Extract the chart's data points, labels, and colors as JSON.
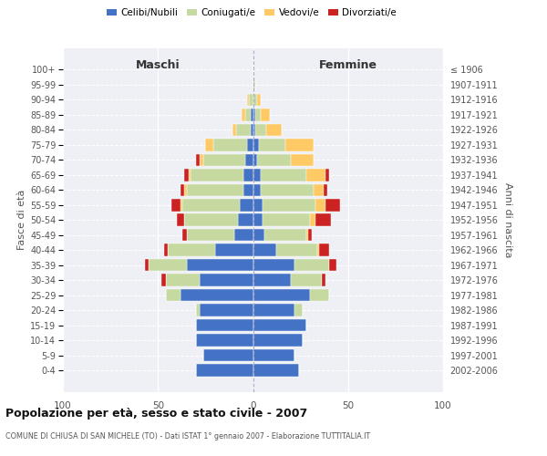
{
  "age_groups": [
    "0-4",
    "5-9",
    "10-14",
    "15-19",
    "20-24",
    "25-29",
    "30-34",
    "35-39",
    "40-44",
    "45-49",
    "50-54",
    "55-59",
    "60-64",
    "65-69",
    "70-74",
    "75-79",
    "80-84",
    "85-89",
    "90-94",
    "95-99",
    "100+"
  ],
  "birth_years": [
    "2002-2006",
    "1997-2001",
    "1992-1996",
    "1987-1991",
    "1982-1986",
    "1977-1981",
    "1972-1976",
    "1967-1971",
    "1962-1966",
    "1957-1961",
    "1952-1956",
    "1947-1951",
    "1942-1946",
    "1937-1941",
    "1932-1936",
    "1927-1931",
    "1922-1926",
    "1917-1921",
    "1912-1916",
    "1907-1911",
    "≤ 1906"
  ],
  "males": {
    "celibi": [
      30,
      26,
      30,
      30,
      28,
      38,
      28,
      35,
      20,
      10,
      8,
      7,
      5,
      5,
      4,
      3,
      1,
      1,
      0,
      0,
      0
    ],
    "coniugati": [
      0,
      0,
      0,
      0,
      2,
      8,
      18,
      20,
      25,
      25,
      28,
      30,
      30,
      28,
      22,
      18,
      8,
      3,
      2,
      0,
      0
    ],
    "vedovi": [
      0,
      0,
      0,
      0,
      0,
      0,
      0,
      0,
      0,
      0,
      0,
      1,
      1,
      1,
      2,
      4,
      2,
      2,
      1,
      0,
      0
    ],
    "divorziati": [
      0,
      0,
      0,
      0,
      0,
      0,
      2,
      2,
      2,
      2,
      4,
      5,
      2,
      2,
      2,
      0,
      0,
      0,
      0,
      0,
      0
    ]
  },
  "females": {
    "nubili": [
      24,
      22,
      26,
      28,
      22,
      30,
      20,
      22,
      12,
      6,
      5,
      5,
      4,
      4,
      2,
      3,
      1,
      1,
      0,
      0,
      0
    ],
    "coniugate": [
      0,
      0,
      0,
      0,
      4,
      10,
      16,
      18,
      22,
      22,
      25,
      28,
      28,
      24,
      18,
      14,
      6,
      3,
      2,
      1,
      0
    ],
    "vedove": [
      0,
      0,
      0,
      0,
      0,
      0,
      0,
      0,
      1,
      1,
      3,
      5,
      5,
      10,
      12,
      15,
      8,
      5,
      2,
      0,
      0
    ],
    "divorziate": [
      0,
      0,
      0,
      0,
      0,
      0,
      2,
      4,
      5,
      2,
      8,
      8,
      2,
      2,
      0,
      0,
      0,
      0,
      0,
      0,
      0
    ]
  },
  "colors": {
    "celibi": "#4472c4",
    "coniugati": "#c5d9a0",
    "vedovi": "#ffc966",
    "divorziati": "#cc2222"
  },
  "title": "Popolazione per età, sesso e stato civile - 2007",
  "subtitle": "COMUNE DI CHIUSA DI SAN MICHELE (TO) - Dati ISTAT 1° gennaio 2007 - Elaborazione TUTTITALIA.IT",
  "xlabel_left": "Maschi",
  "xlabel_right": "Femmine",
  "ylabel": "Fasce di età",
  "ylabel_right": "Anni di nascita",
  "xlim": 100,
  "bg_color": "#eef0f5"
}
